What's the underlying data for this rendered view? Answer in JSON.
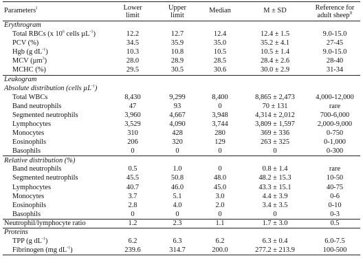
{
  "columns": {
    "param": "Parameters",
    "param_mark": "I",
    "lower": [
      "Lower",
      "limit"
    ],
    "upper": [
      "Upper",
      "limit"
    ],
    "median": "Median",
    "msd": "M ± SD",
    "ref": [
      "Reference for",
      "adult sheep"
    ],
    "ref_mark": "II"
  },
  "rows": [
    {
      "kind": "section",
      "label": "Erythrogram",
      "line": "top"
    },
    {
      "kind": "data",
      "label": "Total RBCs (x 10",
      "sup": "6",
      "label_tail": " cells µL",
      "sup2": "-1",
      "label_end": ")",
      "values": [
        "12.2",
        "12.7",
        "12.4",
        "12.4 ± 1.5",
        "9.0-15.0"
      ]
    },
    {
      "kind": "data",
      "label": "PCV (%)",
      "values": [
        "34.5",
        "35.9",
        "35.0",
        "35.2 ± 4.1",
        "27-45"
      ]
    },
    {
      "kind": "data",
      "label": "Hgb (g dL",
      "sup": "-1",
      "label_tail": ")",
      "values": [
        "10.3",
        "10.8",
        "10.5",
        "10.5 ± 1.4",
        "9.0-15.0"
      ]
    },
    {
      "kind": "data",
      "label": "MCV (µm",
      "sup": "3",
      "label_tail": ")",
      "values": [
        "28.0",
        "28.9",
        "28.5",
        "28.4 ± 2.6",
        "28-40"
      ]
    },
    {
      "kind": "data",
      "label": "MCHC (%)",
      "values": [
        "29.5",
        "30.5",
        "30.6",
        "30.0 ± 2.9",
        "31-34"
      ]
    },
    {
      "kind": "section",
      "label": "Leukogram",
      "line": "top"
    },
    {
      "kind": "section",
      "label": "Absolute distribution (cells µL",
      "sup": "-1",
      "label_tail": ")"
    },
    {
      "kind": "data",
      "label": "Total WBCs",
      "values": [
        "8,430",
        "9,299",
        "8,400",
        "8,865 ± 2,473",
        "4,000-12,000"
      ]
    },
    {
      "kind": "data",
      "label": "Band neutrophils",
      "values": [
        "47",
        "93",
        "0",
        "70 ± 131",
        "rare"
      ]
    },
    {
      "kind": "data",
      "label": "Segmented neutrophils",
      "values": [
        "3,960",
        "4,667",
        "3,948",
        "4,314 ± 2,012",
        "700-6,000"
      ]
    },
    {
      "kind": "data",
      "label": "Lymphocytes",
      "values": [
        "3,529",
        "4,090",
        "3,744",
        "3,809 ± 1,597",
        "2,000-9,000"
      ]
    },
    {
      "kind": "data",
      "label": "Monocytes",
      "values": [
        "310",
        "428",
        "280",
        "369 ± 336",
        "0-750"
      ]
    },
    {
      "kind": "data",
      "label": "Eosinophils",
      "values": [
        "206",
        "320",
        "129",
        "263 ± 325",
        "0-1,000"
      ]
    },
    {
      "kind": "data",
      "label": "Basophils",
      "values": [
        "0",
        "0",
        "0",
        "0",
        "0-300"
      ]
    },
    {
      "kind": "section",
      "label": "Relative distribution (%)",
      "line": "top"
    },
    {
      "kind": "data",
      "label": "Band neutrophils",
      "values": [
        "0.5",
        "1.0",
        "0",
        "0.8 ± 1.4",
        "rare"
      ]
    },
    {
      "kind": "data",
      "label": "Segmented neutrophils",
      "values": [
        "45.5",
        "50.8",
        "48.0",
        "48.2 ± 15.3",
        "10-50"
      ]
    },
    {
      "kind": "data",
      "label": "Lymphocytes",
      "values": [
        "40.7",
        "46.0",
        "45.0",
        "43.3 ± 15.1",
        "40-75"
      ]
    },
    {
      "kind": "data",
      "label": "Monocytes",
      "values": [
        "3.7",
        "5.1",
        "3.0",
        "4.4 ± 3.9",
        "0-6"
      ]
    },
    {
      "kind": "data",
      "label": "Eosinophils",
      "values": [
        "2.8",
        "4.0",
        "2.0",
        "3.4 ± 3.5",
        "0-10"
      ]
    },
    {
      "kind": "data",
      "label": "Basophils",
      "values": [
        "0",
        "0",
        "0",
        "0",
        "0-3"
      ]
    },
    {
      "kind": "ratio",
      "label": "Neutrophil/lymphocyte ratio",
      "line": "top",
      "values": [
        "1.2",
        "2.3",
        "1.1",
        "1.7 ± 3.0",
        "0.5"
      ]
    },
    {
      "kind": "section",
      "label": "Proteins",
      "line": "top"
    },
    {
      "kind": "data",
      "label": "TPP (g dL",
      "sup": "-1",
      "label_tail": ")",
      "values": [
        "6.2",
        "6.3",
        "6.2",
        "6.3 ± 0.4",
        "6.0-7.5"
      ]
    },
    {
      "kind": "data",
      "label": "Fibrinogen (mg dL",
      "sup": "-1",
      "label_tail": ")",
      "line": "bottom",
      "values": [
        "239.6",
        "314.7",
        "200.0",
        "277.2 ± 213.9",
        "100-500"
      ]
    }
  ]
}
